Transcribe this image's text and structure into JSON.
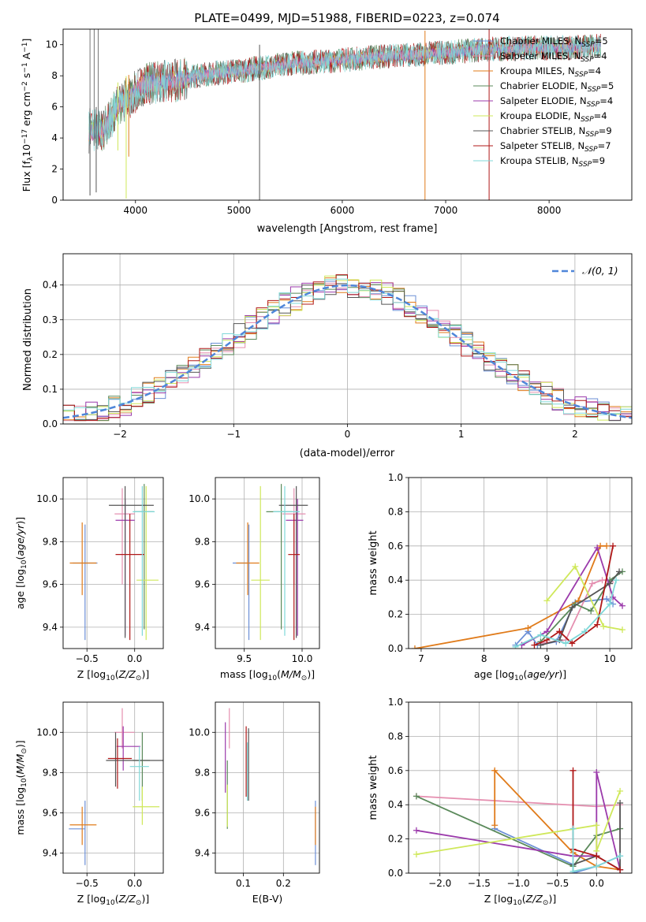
{
  "page_title": "PLATE=0499, MJD=51988, FIBERID=0223, z=0.074",
  "colors": {
    "Chabrier MILES": "#6b8fd6",
    "Salpeter MILES": "#e58fb0",
    "Kroupa MILES": "#e07b1a",
    "Chabrier ELODIE": "#5b8a5b",
    "Salpeter ELODIE": "#9b3aab",
    "Kroupa ELODIE": "#cfe85a",
    "Chabrier STELIB": "#555555",
    "Salpeter STELIB": "#b01818",
    "Kroupa STELIB": "#7fd8d8"
  },
  "chart_data": [
    {
      "id": "spectrum",
      "type": "line",
      "xlabel": "wavelength [Angstrom, rest frame]",
      "ylabel": "Flux [f_λ10^-17 erg cm^-2 s^-1 A^-1]",
      "xlim": [
        3300,
        8800
      ],
      "ylim": [
        0,
        11
      ],
      "xticks": [
        4000,
        5000,
        6000,
        7000,
        8000
      ],
      "yticks": [
        0,
        2,
        4,
        6,
        8,
        10
      ],
      "grid": false,
      "legend_position": "top-right",
      "legend": [
        {
          "name": "Chabrier MILES",
          "nssp": "5"
        },
        {
          "name": "Salpeter MILES",
          "nssp": "4"
        },
        {
          "name": "Kroupa MILES",
          "nssp": "4"
        },
        {
          "name": "Chabrier ELODIE",
          "nssp": "5"
        },
        {
          "name": "Salpeter ELODIE",
          "nssp": "4"
        },
        {
          "name": "Kroupa ELODIE",
          "nssp": "4"
        },
        {
          "name": "Chabrier STELIB",
          "nssp": "9"
        },
        {
          "name": "Salpeter STELIB",
          "nssp": "7"
        },
        {
          "name": "Kroupa STELIB",
          "nssp": "9"
        }
      ],
      "continuum": [
        [
          3550,
          4.4
        ],
        [
          3700,
          4.6
        ],
        [
          3850,
          6.3
        ],
        [
          3950,
          6.6
        ],
        [
          4050,
          7.4
        ],
        [
          4200,
          7.6
        ],
        [
          4400,
          7.7
        ],
        [
          4600,
          8.0
        ],
        [
          4800,
          8.2
        ],
        [
          5000,
          8.3
        ],
        [
          5200,
          8.5
        ],
        [
          5500,
          8.8
        ],
        [
          5800,
          8.9
        ],
        [
          6000,
          9.0
        ],
        [
          6300,
          9.2
        ],
        [
          6600,
          9.3
        ],
        [
          7000,
          9.5
        ],
        [
          7400,
          9.7
        ],
        [
          7800,
          9.8
        ],
        [
          8200,
          9.8
        ],
        [
          8500,
          9.9
        ]
      ],
      "spikes": [
        [
          3560,
          0.3
        ],
        [
          3620,
          0.5
        ],
        [
          3830,
          3.2
        ],
        [
          3910,
          0.1
        ],
        [
          3935,
          2.8
        ],
        [
          5200,
          0.0
        ],
        [
          6800,
          0.0
        ],
        [
          7420,
          0.0
        ]
      ]
    },
    {
      "id": "residuals",
      "type": "histogram",
      "xlabel": "(data-model)/error",
      "ylabel": "Normed distribution",
      "xlim": [
        -2.5,
        2.5
      ],
      "ylim": [
        0,
        0.49
      ],
      "xticks": [
        -2,
        -1,
        0,
        1,
        2
      ],
      "yticks": [
        0.0,
        0.1,
        0.2,
        0.3,
        0.4
      ],
      "grid": true,
      "legend_position": "top-right",
      "gaussian_label": "𝒩(0, 1)",
      "bin_width": 0.1
    },
    {
      "id": "age_vs_Z",
      "type": "errorbar",
      "xlabel": "Z [log10(Z/Z⊙)]",
      "ylabel": "age [log10(age/yr)]",
      "xlim": [
        -0.75,
        0.3
      ],
      "ylim": [
        9.3,
        10.1
      ],
      "xticks": [
        -0.5,
        0.0
      ],
      "yticks": [
        9.4,
        9.6,
        9.8,
        10.0
      ],
      "grid": true,
      "points": [
        {
          "model": "Chabrier MILES",
          "x": -0.52,
          "xerr": [
            0.13,
            0.13
          ],
          "y": 9.7,
          "yerr": [
            0.36,
            0.18
          ]
        },
        {
          "model": "Salpeter MILES",
          "x": -0.13,
          "xerr": [
            0.08,
            0.13
          ],
          "y": 9.93,
          "yerr": [
            0.33,
            0.12
          ]
        },
        {
          "model": "Kroupa MILES",
          "x": -0.55,
          "xerr": [
            0.13,
            0.15
          ],
          "y": 9.7,
          "yerr": [
            0.15,
            0.19
          ]
        },
        {
          "model": "Chabrier ELODIE",
          "x": 0.1,
          "xerr": [
            0.1,
            0.1
          ],
          "y": 9.94,
          "yerr": [
            0.55,
            0.13
          ]
        },
        {
          "model": "Salpeter ELODIE",
          "x": -0.1,
          "xerr": [
            0.1,
            0.1
          ],
          "y": 9.9,
          "yerr": [
            0.54,
            0.1
          ]
        },
        {
          "model": "Kroupa ELODIE",
          "x": 0.12,
          "xerr": [
            0.1,
            0.13
          ],
          "y": 9.62,
          "yerr": [
            0.28,
            0.44
          ]
        },
        {
          "model": "Chabrier STELIB",
          "x": -0.1,
          "xerr": [
            0.17,
            0.3
          ],
          "y": 9.97,
          "yerr": [
            0.62,
            0.09
          ]
        },
        {
          "model": "Salpeter STELIB",
          "x": -0.05,
          "xerr": [
            0.15,
            0.15
          ],
          "y": 9.74,
          "yerr": [
            0.4,
            0.19
          ]
        },
        {
          "model": "Kroupa STELIB",
          "x": 0.08,
          "xerr": [
            0.1,
            0.13
          ],
          "y": 9.94,
          "yerr": [
            0.58,
            0.12
          ]
        }
      ]
    },
    {
      "id": "age_vs_mass",
      "type": "errorbar",
      "xlabel": "mass [log10(M/M⊙)]",
      "ylabel": "",
      "xlim": [
        9.25,
        10.15
      ],
      "ylim": [
        9.3,
        10.1
      ],
      "xticks": [
        9.5,
        10.0
      ],
      "yticks": [
        9.4,
        9.6,
        9.8,
        10.0
      ],
      "grid": true,
      "points": [
        {
          "model": "Chabrier MILES",
          "x": 9.54,
          "xerr": [
            0.14,
            0.0
          ],
          "y": 9.7,
          "yerr": [
            0.36,
            0.18
          ]
        },
        {
          "model": "Salpeter MILES",
          "x": 9.93,
          "xerr": [
            0.1,
            0.1
          ],
          "y": 9.93,
          "yerr": [
            0.33,
            0.12
          ]
        },
        {
          "model": "Kroupa MILES",
          "x": 9.53,
          "xerr": [
            0.1,
            0.1
          ],
          "y": 9.7,
          "yerr": [
            0.15,
            0.19
          ]
        },
        {
          "model": "Chabrier ELODIE",
          "x": 9.82,
          "xerr": [
            0.13,
            0.1
          ],
          "y": 9.94,
          "yerr": [
            0.55,
            0.13
          ]
        },
        {
          "model": "Salpeter ELODIE",
          "x": 9.96,
          "xerr": [
            0.1,
            0.05
          ],
          "y": 9.9,
          "yerr": [
            0.54,
            0.1
          ]
        },
        {
          "model": "Kroupa ELODIE",
          "x": 9.64,
          "xerr": [
            0.08,
            0.08
          ],
          "y": 9.62,
          "yerr": [
            0.28,
            0.44
          ]
        },
        {
          "model": "Chabrier STELIB",
          "x": 9.95,
          "xerr": [
            0.15,
            0.1
          ],
          "y": 9.97,
          "yerr": [
            0.62,
            0.09
          ]
        },
        {
          "model": "Salpeter STELIB",
          "x": 9.93,
          "xerr": [
            0.05,
            0.05
          ],
          "y": 9.74,
          "yerr": [
            0.4,
            0.19
          ]
        },
        {
          "model": "Kroupa STELIB",
          "x": 9.85,
          "xerr": [
            0.1,
            0.13
          ],
          "y": 9.94,
          "yerr": [
            0.58,
            0.12
          ]
        }
      ]
    },
    {
      "id": "mass_vs_Z",
      "type": "errorbar",
      "xlabel": "Z [log10(Z/Z⊙)]",
      "ylabel": "mass [log10(M/M⊙)]",
      "xlim": [
        -0.75,
        0.3
      ],
      "ylim": [
        9.3,
        10.15
      ],
      "xticks": [
        -0.5,
        0.0
      ],
      "yticks": [
        9.4,
        9.6,
        9.8,
        10.0
      ],
      "grid": true,
      "points": [
        {
          "model": "Chabrier MILES",
          "x": -0.52,
          "xerr": [
            0.17,
            0.0
          ],
          "y": 9.52,
          "yerr": [
            0.18,
            0.14
          ]
        },
        {
          "model": "Salpeter MILES",
          "x": -0.13,
          "xerr": [
            0.08,
            0.13
          ],
          "y": 10.0,
          "yerr": [
            0.08,
            0.12
          ]
        },
        {
          "model": "Kroupa MILES",
          "x": -0.55,
          "xerr": [
            0.13,
            0.15
          ],
          "y": 9.54,
          "yerr": [
            0.1,
            0.09
          ]
        },
        {
          "model": "Chabrier ELODIE",
          "x": 0.08,
          "xerr": [
            0.1,
            0.08
          ],
          "y": 9.86,
          "yerr": [
            0.2,
            0.14
          ]
        },
        {
          "model": "Salpeter ELODIE",
          "x": -0.12,
          "xerr": [
            0.07,
            0.18
          ],
          "y": 9.93,
          "yerr": [
            0.12,
            0.1
          ]
        },
        {
          "model": "Kroupa ELODIE",
          "x": 0.08,
          "xerr": [
            0.1,
            0.18
          ],
          "y": 9.63,
          "yerr": [
            0.09,
            0.1
          ]
        },
        {
          "model": "Chabrier STELIB",
          "x": -0.2,
          "xerr": [
            0.1,
            0.5
          ],
          "y": 9.86,
          "yerr": [
            0.13,
            0.14
          ]
        },
        {
          "model": "Salpeter STELIB",
          "x": -0.18,
          "xerr": [
            0.1,
            0.15
          ],
          "y": 9.87,
          "yerr": [
            0.15,
            0.1
          ]
        },
        {
          "model": "Kroupa STELIB",
          "x": 0.05,
          "xerr": [
            0.1,
            0.1
          ],
          "y": 9.83,
          "yerr": [
            0.17,
            0.1
          ]
        }
      ]
    },
    {
      "id": "mass_vs_ebv",
      "type": "errorbar",
      "xlabel": "E(B-V)",
      "ylabel": "",
      "xlim": [
        0.03,
        0.29
      ],
      "ylim": [
        9.3,
        10.15
      ],
      "xticks": [
        0.1,
        0.2
      ],
      "yticks": [
        9.4,
        9.6,
        9.8,
        10.0
      ],
      "grid": true,
      "points": [
        {
          "model": "Chabrier MILES",
          "x": 0.28,
          "xerr": [
            0.0,
            0.0
          ],
          "y": 9.52,
          "yerr": [
            0.18,
            0.14
          ]
        },
        {
          "model": "Salpeter MILES",
          "x": 0.065,
          "xerr": [
            0.0,
            0.0
          ],
          "y": 10.0,
          "yerr": [
            0.08,
            0.12
          ]
        },
        {
          "model": "Kroupa MILES",
          "x": 0.28,
          "xerr": [
            0.0,
            0.0
          ],
          "y": 9.54,
          "yerr": [
            0.1,
            0.09
          ]
        },
        {
          "model": "Chabrier ELODIE",
          "x": 0.06,
          "xerr": [
            0.0,
            0.0
          ],
          "y": 9.7,
          "yerr": [
            0.18,
            0.16
          ]
        },
        {
          "model": "Salpeter ELODIE",
          "x": 0.055,
          "xerr": [
            0.0,
            0.0
          ],
          "y": 9.93,
          "yerr": [
            0.23,
            0.12
          ]
        },
        {
          "model": "Kroupa ELODIE",
          "x": 0.06,
          "xerr": [
            0.0,
            0.0
          ],
          "y": 9.62,
          "yerr": [
            0.09,
            0.12
          ]
        },
        {
          "model": "Chabrier STELIB",
          "x": 0.113,
          "xerr": [
            0.0,
            0.0
          ],
          "y": 9.86,
          "yerr": [
            0.2,
            0.16
          ]
        },
        {
          "model": "Salpeter STELIB",
          "x": 0.107,
          "xerr": [
            0.0,
            0.0
          ],
          "y": 9.87,
          "yerr": [
            0.19,
            0.16
          ]
        },
        {
          "model": "Kroupa STELIB",
          "x": 0.11,
          "xerr": [
            0.0,
            0.0
          ],
          "y": 9.83,
          "yerr": [
            0.17,
            0.12
          ]
        }
      ]
    },
    {
      "id": "weight_vs_age",
      "type": "line",
      "xlabel": "age [log10(age/yr)]",
      "ylabel": "mass weight",
      "xlim": [
        6.8,
        10.35
      ],
      "ylim": [
        0,
        1
      ],
      "xticks": [
        7,
        8,
        9,
        10
      ],
      "yticks": [
        0.0,
        0.2,
        0.4,
        0.6,
        0.8,
        1.0
      ],
      "grid": true,
      "series": [
        {
          "model": "Chabrier MILES",
          "x": [
            8.5,
            8.7,
            8.85,
            9.15,
            9.45,
            9.95,
            10.05
          ],
          "y": [
            0.02,
            0.1,
            0.02,
            0.04,
            0.27,
            0.29,
            0.26
          ]
        },
        {
          "model": "Salpeter MILES",
          "x": [
            8.9,
            9.3,
            9.72,
            9.88,
            10.05
          ],
          "y": [
            0.03,
            0.05,
            0.38,
            0.4,
            0.4
          ]
        },
        {
          "model": "Kroupa MILES",
          "x": [
            6.9,
            8.7,
            9.5,
            9.85,
            9.95
          ],
          "y": [
            0.0,
            0.12,
            0.28,
            0.6,
            0.6
          ]
        },
        {
          "model": "Chabrier ELODIE",
          "x": [
            8.9,
            9.45,
            9.7,
            10.0,
            10.2
          ],
          "y": [
            0.04,
            0.26,
            0.22,
            0.4,
            0.45
          ]
        },
        {
          "model": "Salpeter ELODIE",
          "x": [
            8.6,
            9.0,
            9.8,
            10.05,
            10.2
          ],
          "y": [
            0.02,
            0.1,
            0.59,
            0.3,
            0.25
          ]
        },
        {
          "model": "Kroupa ELODIE",
          "x": [
            9.0,
            9.45,
            9.9,
            10.2
          ],
          "y": [
            0.28,
            0.48,
            0.13,
            0.11
          ]
        },
        {
          "model": "Chabrier STELIB",
          "x": [
            8.9,
            9.2,
            9.4,
            10.0,
            10.15
          ],
          "y": [
            0.02,
            0.05,
            0.24,
            0.38,
            0.45
          ]
        },
        {
          "model": "Salpeter STELIB",
          "x": [
            8.8,
            9.0,
            9.2,
            9.4,
            9.8,
            10.05
          ],
          "y": [
            0.02,
            0.05,
            0.1,
            0.03,
            0.14,
            0.6
          ]
        },
        {
          "model": "Kroupa STELIB",
          "x": [
            8.5,
            8.9,
            9.3,
            9.6,
            10.0,
            10.1
          ],
          "y": [
            0.01,
            0.08,
            0.03,
            0.1,
            0.26,
            0.4
          ]
        }
      ]
    },
    {
      "id": "weight_vs_Z",
      "type": "line",
      "xlabel": "Z [log10(Z/Z⊙)]",
      "ylabel": "mass weight",
      "xlim": [
        -2.4,
        0.45
      ],
      "ylim": [
        0,
        1
      ],
      "xticks": [
        -2.0,
        -1.5,
        -1.0,
        -0.5,
        0.0
      ],
      "yticks": [
        0.0,
        0.2,
        0.4,
        0.6,
        0.8,
        1.0
      ],
      "grid": true,
      "series": [
        {
          "model": "Chabrier MILES",
          "x": [
            -1.3,
            -0.3,
            -0.3,
            0.0,
            0.3
          ],
          "y": [
            0.26,
            0.05,
            0.0,
            0.04,
            0.1
          ]
        },
        {
          "model": "Salpeter MILES",
          "x": [
            -2.3,
            0.0,
            0.3,
            0.3
          ],
          "y": [
            0.45,
            0.39,
            0.4,
            0.02
          ]
        },
        {
          "model": "Kroupa MILES",
          "x": [
            -1.3,
            -1.3,
            -0.3,
            0.0,
            0.3
          ],
          "y": [
            0.28,
            0.6,
            0.12,
            0.04,
            0.02
          ]
        },
        {
          "model": "Chabrier ELODIE",
          "x": [
            -2.3,
            -0.3,
            0.0,
            0.3
          ],
          "y": [
            0.45,
            0.04,
            0.22,
            0.26
          ]
        },
        {
          "model": "Salpeter ELODIE",
          "x": [
            -2.3,
            -0.3,
            0.0,
            0.0,
            0.3
          ],
          "y": [
            0.25,
            0.1,
            0.1,
            0.59,
            0.02
          ]
        },
        {
          "model": "Kroupa ELODIE",
          "x": [
            -2.3,
            0.0,
            0.0,
            0.3
          ],
          "y": [
            0.11,
            0.28,
            0.13,
            0.48
          ]
        },
        {
          "model": "Chabrier STELIB",
          "x": [
            -0.3,
            0.0,
            0.3,
            0.3
          ],
          "y": [
            0.05,
            0.1,
            0.02,
            0.41
          ]
        },
        {
          "model": "Salpeter STELIB",
          "x": [
            -0.3,
            -0.3,
            0.0,
            0.3
          ],
          "y": [
            0.6,
            0.14,
            0.1,
            0.02
          ]
        },
        {
          "model": "Kroupa STELIB",
          "x": [
            -0.3,
            -0.3,
            0.0,
            0.3
          ],
          "y": [
            0.26,
            0.01,
            0.04,
            0.1
          ]
        }
      ]
    }
  ]
}
